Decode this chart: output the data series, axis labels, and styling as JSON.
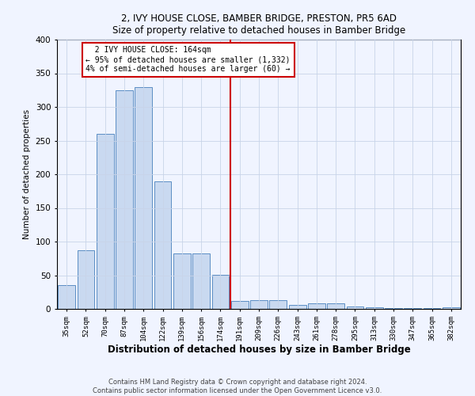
{
  "title": "2, IVY HOUSE CLOSE, BAMBER BRIDGE, PRESTON, PR5 6AD",
  "subtitle": "Size of property relative to detached houses in Bamber Bridge",
  "xlabel": "Distribution of detached houses by size in Bamber Bridge",
  "ylabel": "Number of detached properties",
  "footer1": "Contains HM Land Registry data © Crown copyright and database right 2024.",
  "footer2": "Contains public sector information licensed under the Open Government Licence v3.0.",
  "annotation_line1": "  2 IVY HOUSE CLOSE: 164sqm",
  "annotation_line2": "← 95% of detached houses are smaller (1,332)",
  "annotation_line3": "4% of semi-detached houses are larger (60) →",
  "bar_labels": [
    "35sqm",
    "52sqm",
    "70sqm",
    "87sqm",
    "104sqm",
    "122sqm",
    "139sqm",
    "156sqm",
    "174sqm",
    "191sqm",
    "209sqm",
    "226sqm",
    "243sqm",
    "261sqm",
    "278sqm",
    "295sqm",
    "313sqm",
    "330sqm",
    "347sqm",
    "365sqm",
    "382sqm"
  ],
  "bar_values": [
    35,
    87,
    260,
    325,
    330,
    190,
    82,
    82,
    51,
    12,
    13,
    13,
    6,
    8,
    8,
    4,
    2,
    1,
    1,
    1,
    2
  ],
  "bar_color": "#c9d9f0",
  "bar_edge_color": "#5b8ec4",
  "background_color": "#f0f4ff",
  "grid_color": "#c8d4e8",
  "vline_x_index": 8.5,
  "vline_color": "#cc0000",
  "annotation_box_color": "#cc0000",
  "ylim": [
    0,
    400
  ],
  "yticks": [
    0,
    50,
    100,
    150,
    200,
    250,
    300,
    350,
    400
  ]
}
